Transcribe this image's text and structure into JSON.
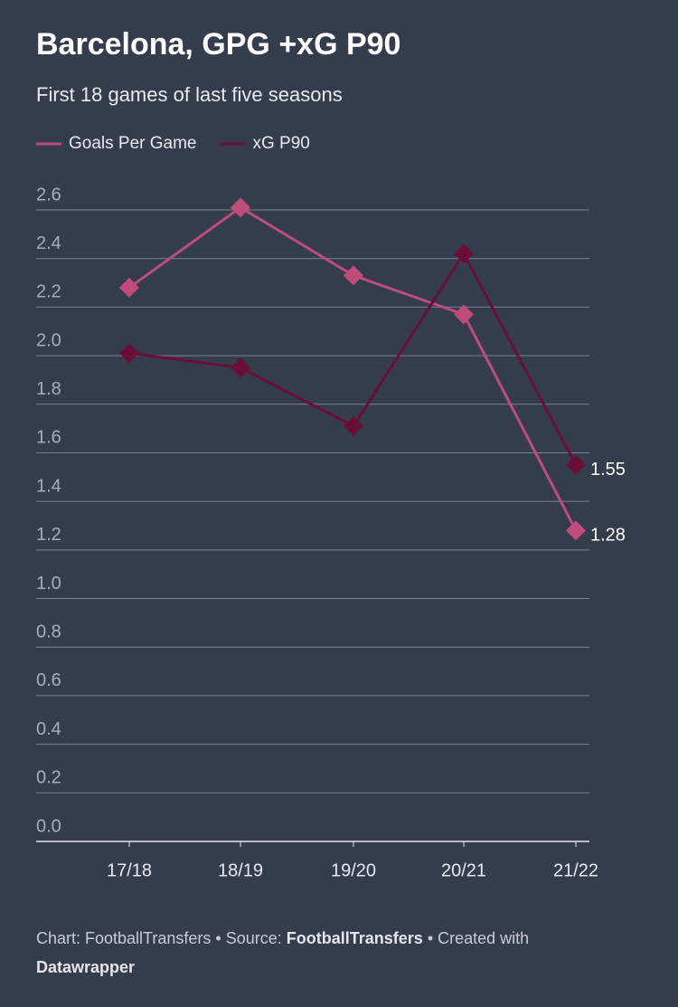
{
  "chart_data": {
    "type": "line",
    "title": "Barcelona, GPG +xG P90",
    "subtitle": "First 18 games of last five seasons",
    "categories": [
      "17/18",
      "18/19",
      "19/20",
      "20/21",
      "21/22"
    ],
    "series": [
      {
        "name": "Goals Per Game",
        "color": "#bf4c7b",
        "values": [
          2.28,
          2.61,
          2.33,
          2.17,
          1.28
        ]
      },
      {
        "name": "xG P90",
        "color": "#6a0e36",
        "values": [
          2.01,
          1.95,
          1.71,
          2.42,
          1.55
        ]
      }
    ],
    "ylim": [
      0,
      2.6
    ],
    "yticks": [
      {
        "value": 0,
        "label": "0.0"
      },
      0.2,
      0.4,
      0.6,
      0.8,
      {
        "value": 1,
        "label": "1.0"
      },
      1.2,
      1.4,
      1.6,
      1.8,
      {
        "value": 2,
        "label": "2.0"
      },
      2.2,
      2.4,
      2.6
    ],
    "grid": true,
    "footer": {
      "chart": "Chart: FootballTransfers",
      "source_label": "Source:",
      "source": "FootballTransfers",
      "created": "Created with",
      "tool": "Datawrapper"
    }
  }
}
